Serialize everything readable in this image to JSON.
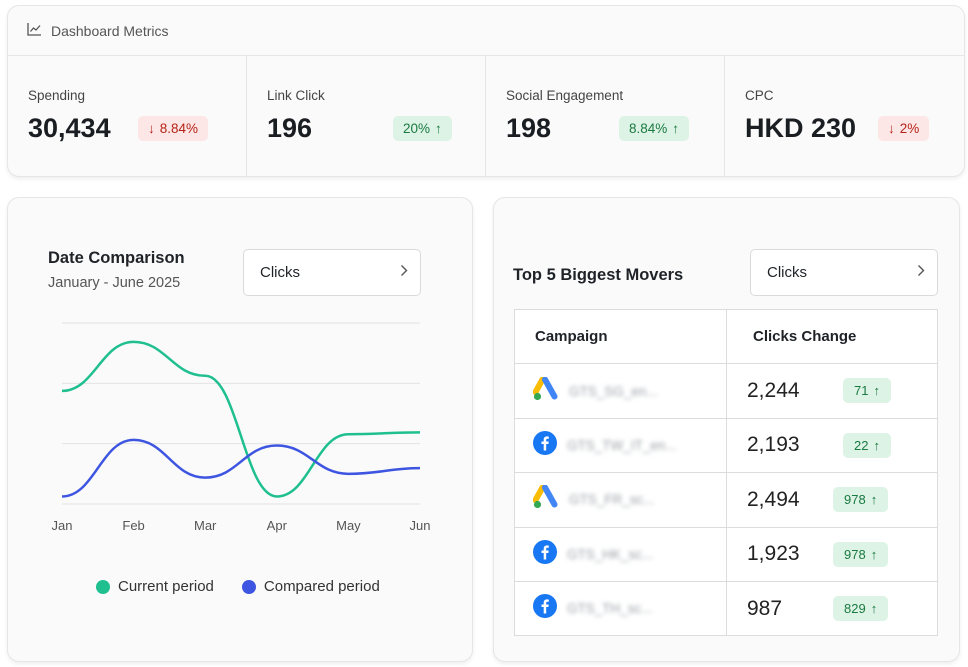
{
  "header": {
    "title": "Dashboard Metrics",
    "icon": "line-chart-icon"
  },
  "metrics": [
    {
      "label": "Spending",
      "value": "30,434",
      "change": "8.84%",
      "direction": "down"
    },
    {
      "label": "Link Click",
      "value": "196",
      "change": "20%",
      "direction": "up"
    },
    {
      "label": "Social Engagement",
      "value": "198",
      "change": "8.84%",
      "direction": "up"
    },
    {
      "label": "CPC",
      "value": "HKD 230",
      "change": "2%",
      "direction": "down"
    }
  ],
  "comparison": {
    "title": "Date Comparison",
    "subtitle": "January - June 2025",
    "select_value": "Clicks",
    "legend": {
      "current": "Current period",
      "compared": "Compared period"
    },
    "colors": {
      "current": "#1fbf8f",
      "compared": "#3d55e0"
    }
  },
  "chart_data": {
    "type": "line",
    "categories": [
      "Jan",
      "Feb",
      "Mar",
      "Apr",
      "May",
      "Jun"
    ],
    "series": [
      {
        "name": "Current period",
        "values": [
          2.8,
          4.1,
          3.2,
          0.0,
          1.65,
          1.7
        ]
      },
      {
        "name": "Compared period",
        "values": [
          0.0,
          1.5,
          0.5,
          1.35,
          0.6,
          0.75
        ]
      }
    ],
    "ylim": [
      -0.2,
      4.6
    ],
    "grid": true,
    "legend_position": "bottom"
  },
  "movers": {
    "title": "Top 5 Biggest Movers",
    "select_value": "Clicks",
    "columns": [
      "Campaign",
      "Clicks Change"
    ],
    "rows": [
      {
        "platform": "google-ads",
        "name": "GTS_SG_en...",
        "clicks": "2,244",
        "change": "71"
      },
      {
        "platform": "facebook",
        "name": "GTS_TW_IT_en...",
        "clicks": "2,193",
        "change": "22"
      },
      {
        "platform": "google-ads",
        "name": "GTS_FR_sc...",
        "clicks": "2,494",
        "change": "978"
      },
      {
        "platform": "facebook",
        "name": "GTS_HK_sc...",
        "clicks": "1,923",
        "change": "978"
      },
      {
        "platform": "facebook",
        "name": "GTS_TH_sc...",
        "clicks": "987",
        "change": "829"
      }
    ]
  }
}
